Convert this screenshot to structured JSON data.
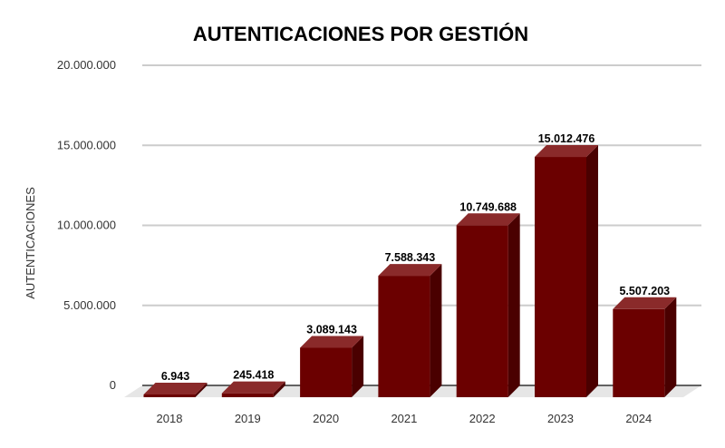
{
  "chart_data": {
    "type": "bar",
    "title": "AUTENTICACIONES POR GESTIÓN",
    "xlabel": "",
    "ylabel": "AUTENTICACIONES",
    "categories": [
      "2018",
      "2019",
      "2020",
      "2021",
      "2022",
      "2023",
      "2024"
    ],
    "values": [
      6943,
      245418,
      3089143,
      7588343,
      10749688,
      15012476,
      5507203
    ],
    "value_labels": [
      "6.943",
      "245.418",
      "3.089.143",
      "7.588.343",
      "10.749.688",
      "15.012.476",
      "5.507.203"
    ],
    "ylim": [
      0,
      20000000
    ],
    "yticks": [
      0,
      5000000,
      10000000,
      15000000,
      20000000
    ],
    "ytick_labels": [
      "0",
      "5.000.000",
      "10.000.000",
      "15.000.000",
      "20.000.000"
    ],
    "grid": true,
    "legend": "none",
    "colors": {
      "bar_front": "#6b0000",
      "bar_side": "#4a0000",
      "bar_top": "#8a2a2a",
      "floor": "#e6e6e6",
      "grid": "#cccccc"
    }
  }
}
